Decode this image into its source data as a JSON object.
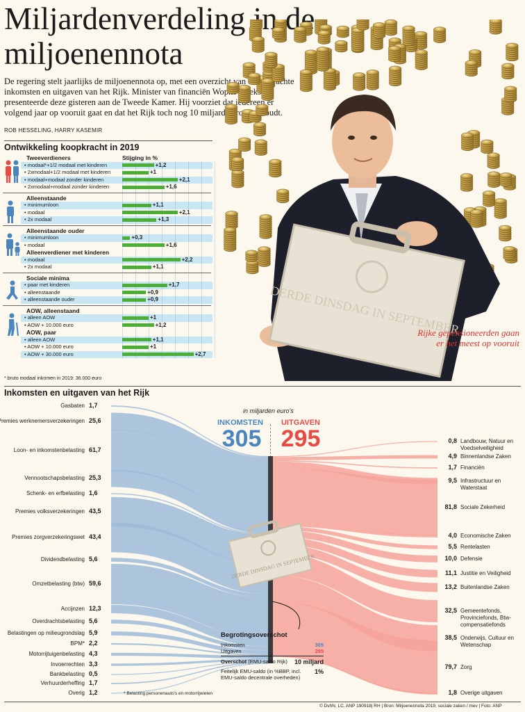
{
  "title": "Miljardenverdeling in de miljoenennota",
  "intro": "De regering stelt jaarlijks de miljoenennota op, met een overzicht van de verwachte inkomsten en uitgaven van het Rijk. Minister van financiën Wopke Hoekstra presenteerde deze gisteren aan de Tweede Kamer. Hij voorziet dat iedereen er volgend jaar op vooruit gaat en dat het Rijk toch nog 10 miljard euro overhoudt.",
  "authors": "ROB HESSELING, HARRY KASEMIR",
  "photo": {
    "briefcase_text": "DERDE DINSDAG IN SEPTEMBER",
    "callout": "Rijke gepensioneerden gaan er het meest op vooruit"
  },
  "koopkracht": {
    "heading": "Ontwikkeling koopkracht in 2019",
    "col_header": "Stijging in %",
    "footnote": "* bruto modaal inkomen in 2019: 36.000 euro",
    "colors": {
      "bar": "#4caf33",
      "band": "#c9e6f5"
    },
    "groups": [
      {
        "icon": "couple-icon",
        "sections": [
          {
            "title": "Tweeverdieners",
            "rows": [
              {
                "label": "modaal*+1/2 modaal met kinderen",
                "value": 1.2,
                "text": "+1,2"
              },
              {
                "label": "2xmodaal+1/2 modaal met kinderen",
                "value": 1.0,
                "text": "+1"
              },
              {
                "label": "modaal+modaal zonder kinderen",
                "value": 2.1,
                "text": "+2,1"
              },
              {
                "label": "2xmodaal+modaal zonder kinderen",
                "value": 1.6,
                "text": "+1,6"
              }
            ]
          }
        ]
      },
      {
        "icon": "person-icon",
        "sections": [
          {
            "title": "Alleenstaande",
            "rows": [
              {
                "label": "minimumloon",
                "value": 1.1,
                "text": "+1,1"
              },
              {
                "label": "modaal",
                "value": 2.1,
                "text": "+2,1"
              },
              {
                "label": "2x modaal",
                "value": 1.3,
                "text": "+1,3"
              }
            ]
          }
        ]
      },
      {
        "icon": "parent-child-icon",
        "sections": [
          {
            "title": "Alleenstaande ouder",
            "rows": [
              {
                "label": "minimumloon",
                "value": 0.3,
                "text": "+0,3"
              },
              {
                "label": "modaal",
                "value": 1.6,
                "text": "+1,6"
              }
            ]
          },
          {
            "title": "Alleenverdiener met kinderen",
            "rows": [
              {
                "label": "modaal",
                "value": 2.2,
                "text": "+2,2"
              },
              {
                "label": "2x modaal",
                "value": 1.1,
                "text": "+1,1"
              }
            ]
          }
        ]
      },
      {
        "icon": "sitting-person-icon",
        "sections": [
          {
            "title": "Sociale minima",
            "rows": [
              {
                "label": "paar met kinderen",
                "value": 1.7,
                "text": "+1,7"
              },
              {
                "label": "alleenstaande",
                "value": 0.9,
                "text": "+0,9"
              },
              {
                "label": "alleenstaande ouder",
                "value": 0.9,
                "text": "+0,9"
              }
            ]
          }
        ]
      },
      {
        "icon": "elderly-person-icon",
        "sections": [
          {
            "title": "AOW, alleenstaand",
            "rows": [
              {
                "label": "alleen AOW",
                "value": 1.0,
                "text": "+1"
              },
              {
                "label": "AOW + 10.000 euro",
                "value": 1.2,
                "text": "+1,2"
              }
            ]
          },
          {
            "title": "AOW, paar",
            "rows": [
              {
                "label": "alleen AOW",
                "value": 1.1,
                "text": "+1,1"
              },
              {
                "label": "AOW + 10.000 euro",
                "value": 1.0,
                "text": "+1"
              },
              {
                "label": "AOW + 30.000 euro",
                "value": 2.7,
                "text": "+2,7"
              }
            ]
          }
        ]
      }
    ]
  },
  "rijk": {
    "heading": "Inkomsten en uitgaven van het Rijk",
    "unit": "in miljarden euro's",
    "inkomsten_label": "INKOMSTEN",
    "inkomsten_total": "305",
    "uitgaven_label": "UITGAVEN",
    "uitgaven_total": "295",
    "colors": {
      "income": "#4a86bd",
      "income_flow": "#9dbbd8",
      "expense": "#e64b45",
      "expense_flow": "#f4a39a",
      "center": "#3b3b3b"
    },
    "briefcase_text": "DERDE DINSDAG IN SEPTEMBER",
    "footnote": "* Belasting personenauto's en motorrijwielen",
    "summary": {
      "heading": "Begrotingsoverschot",
      "inkomsten_label": "Inkomsten",
      "inkomsten_value": "305",
      "uitgaven_label": "Uitgaven",
      "uitgaven_value": "295",
      "overschot_label": "Overschot",
      "overschot_sub": "(EMU-saldo Rijk)",
      "overschot_value": "10 miljard",
      "feitelijk_label": "Feitelijk EMU-saldo (in %BBP, incl. EMU-saldo decentrale overheden)",
      "feitelijk_value": "1%"
    }
  },
  "chart_data": {
    "type": "sankey",
    "title": "Inkomsten en uitgaven van het Rijk",
    "unit": "miljarden euro",
    "inkomsten": [
      {
        "label": "Gasbaten",
        "value": 1.7,
        "text": "1,7"
      },
      {
        "label": "Premies werknemersverzekeringen",
        "value": 25.6,
        "text": "25,6"
      },
      {
        "label": "Loon- en inkomstenbelasting",
        "value": 61.7,
        "text": "61,7"
      },
      {
        "label": "Vennootschapsbelasting",
        "value": 25.3,
        "text": "25,3"
      },
      {
        "label": "Schenk- en erfbelasting",
        "value": 1.6,
        "text": "1,6"
      },
      {
        "label": "Premies volksverzekeringen",
        "value": 43.5,
        "text": "43,5"
      },
      {
        "label": "Premies zorgverzekeringswet",
        "value": 43.4,
        "text": "43,4"
      },
      {
        "label": "Dividendbelasting",
        "value": 5.6,
        "text": "5,6"
      },
      {
        "label": "Omzetbelasting (btw)",
        "value": 59.6,
        "text": "59,6"
      },
      {
        "label": "Accijnzen",
        "value": 12.3,
        "text": "12,3"
      },
      {
        "label": "Overdrachtsbelasting",
        "value": 5.6,
        "text": "5,6"
      },
      {
        "label": "Belastingen op milieugrondslag",
        "value": 5.9,
        "text": "5,9"
      },
      {
        "label": "BPM*",
        "value": 2.2,
        "text": "2,2"
      },
      {
        "label": "Motorrijtuigenbelasting",
        "value": 4.3,
        "text": "4,3"
      },
      {
        "label": "Invoerrechten",
        "value": 3.3,
        "text": "3,3"
      },
      {
        "label": "Bankbelasting",
        "value": 0.5,
        "text": "0,5"
      },
      {
        "label": "Verhuurderheffing",
        "value": 1.7,
        "text": "1,7"
      },
      {
        "label": "Overig",
        "value": 1.2,
        "text": "1,2"
      }
    ],
    "uitgaven": [
      {
        "label": "Landbouw, Natuur en Voedselveiligheid",
        "value": 0.8,
        "text": "0,8"
      },
      {
        "label": "Binnenlandse Zaken",
        "value": 4.9,
        "text": "4,9"
      },
      {
        "label": "Financiën",
        "value": 1.7,
        "text": "1,7"
      },
      {
        "label": "Infrastructuur en Waterstaat",
        "value": 9.5,
        "text": "9,5"
      },
      {
        "label": "Sociale Zekerheid",
        "value": 81.8,
        "text": "81,8"
      },
      {
        "label": "Economische Zaken",
        "value": 4.0,
        "text": "4,0"
      },
      {
        "label": "Rentelasten",
        "value": 5.5,
        "text": "5,5"
      },
      {
        "label": "Defensie",
        "value": 10.0,
        "text": "10,0"
      },
      {
        "label": "Justitie en Veiligheid",
        "value": 11.1,
        "text": "11,1"
      },
      {
        "label": "Buitenlandse Zaken",
        "value": 13.2,
        "text": "13,2"
      },
      {
        "label": "Gemeentefonds, Provinciefonds, Btw-compensatiefonds",
        "value": 32.5,
        "text": "32,5"
      },
      {
        "label": "Onderwijs, Cultuur en Wetenschap",
        "value": 38.5,
        "text": "38,5"
      },
      {
        "label": "Zorg",
        "value": 79.7,
        "text": "79,7"
      },
      {
        "label": "Overige uitgaven",
        "value": 1.8,
        "text": "1,8"
      }
    ]
  },
  "credits": "© DvhN, LC, ANP 190918| RH | Bron: Miljoenennota 2019, sociale zaken / mev | Foto: ANP"
}
